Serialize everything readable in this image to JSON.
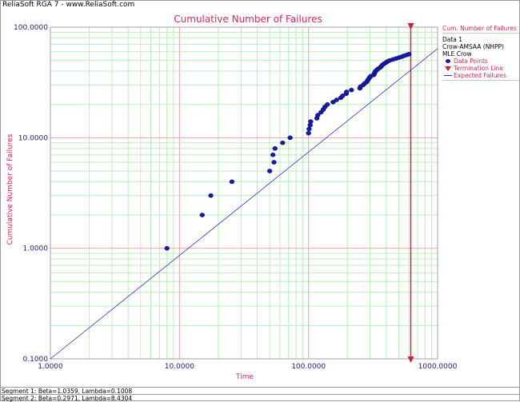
{
  "app_title": "ReliaSoft RGA 7 - www.ReliaSoft.com",
  "legend": {
    "header": "Cum. Number of Failures",
    "data_name": "Data 1",
    "model": "Crow-AMSAA (NHPP)",
    "method": "MLE Crow",
    "items": [
      "Data Points",
      "Termination Line",
      "Expected Failures"
    ]
  },
  "footer": {
    "segment1": "Segment 1: Beta=1.0359, Lambda=0.1008",
    "segment2": "Segment 2: Beta=0.2971, Lambda=8.4304"
  },
  "colors": {
    "points": "#1a1aa8",
    "fit_line": "#3030d0",
    "termination": "#d02030",
    "accent": "#e0245a",
    "grid_major": "#f2a0a0",
    "grid_minor": "#b8f0b8"
  },
  "chart_data": {
    "type": "scatter",
    "title": "Cumulative Number of Failures",
    "xlabel": "Time",
    "ylabel": "Cumulative Number of Failures",
    "x_scale": "log",
    "y_scale": "log",
    "xlim": [
      1,
      1000
    ],
    "ylim": [
      0.1,
      100
    ],
    "x_tick_labels": [
      "1.0000",
      "10.0000",
      "100.0000",
      "1000.0000"
    ],
    "y_tick_labels": [
      "0.1000",
      "1.0000",
      "10.0000",
      "100.0000"
    ],
    "grid": true,
    "legend_position": "right",
    "termination_time": 620,
    "fit_line": [
      [
        1,
        0.1
      ],
      [
        1000,
        64
      ]
    ],
    "points": [
      [
        8,
        1
      ],
      [
        15,
        2
      ],
      [
        17.5,
        3
      ],
      [
        25.5,
        4
      ],
      [
        50,
        5
      ],
      [
        54,
        6
      ],
      [
        53,
        7
      ],
      [
        55,
        8
      ],
      [
        63,
        9
      ],
      [
        72,
        10
      ],
      [
        100,
        11
      ],
      [
        101,
        12
      ],
      [
        103,
        13
      ],
      [
        104,
        14
      ],
      [
        116,
        15
      ],
      [
        118,
        16
      ],
      [
        125,
        17
      ],
      [
        130,
        18
      ],
      [
        134,
        19
      ],
      [
        140,
        20
      ],
      [
        155,
        21
      ],
      [
        165,
        22
      ],
      [
        178,
        23
      ],
      [
        184,
        24
      ],
      [
        196,
        25
      ],
      [
        197,
        26
      ],
      [
        215,
        27
      ],
      [
        250,
        28
      ],
      [
        253,
        29
      ],
      [
        265,
        30
      ],
      [
        272,
        31
      ],
      [
        283,
        32
      ],
      [
        287,
        33
      ],
      [
        292,
        34
      ],
      [
        297,
        35
      ],
      [
        303,
        36
      ],
      [
        320,
        37
      ],
      [
        323,
        38
      ],
      [
        327,
        39
      ],
      [
        330,
        40
      ],
      [
        338,
        41
      ],
      [
        345,
        42
      ],
      [
        358,
        43
      ],
      [
        365,
        44
      ],
      [
        370,
        45
      ],
      [
        378,
        46
      ],
      [
        388,
        47
      ],
      [
        400,
        48
      ],
      [
        410,
        49
      ],
      [
        425,
        50
      ],
      [
        450,
        51
      ],
      [
        475,
        52
      ],
      [
        500,
        53
      ],
      [
        525,
        54
      ],
      [
        548,
        55
      ],
      [
        575,
        56
      ],
      [
        600,
        57
      ]
    ]
  }
}
